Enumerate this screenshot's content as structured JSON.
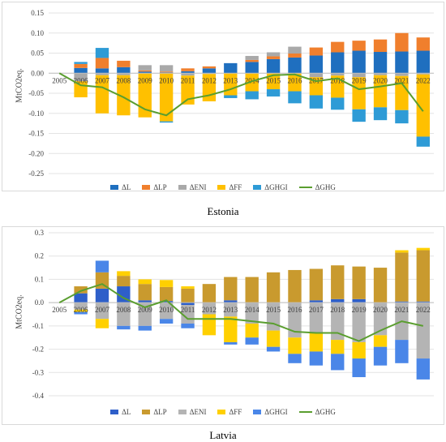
{
  "captions": {
    "estonia": "Estonia",
    "latvia": "Latvia"
  },
  "chart_data": [
    {
      "type": "bar",
      "panel": "estonia",
      "ylabel": "MtCO2eq.",
      "ylim": [
        -0.25,
        0.15
      ],
      "yticks": [
        0.15,
        0.1,
        0.05,
        0.0,
        -0.05,
        -0.1,
        -0.15,
        -0.2,
        -0.25
      ],
      "grid": true,
      "legend": "bottom",
      "categories": [
        "2005",
        "2006",
        "2007",
        "2008",
        "2009",
        "2010",
        "2011",
        "2012",
        "2013",
        "2014",
        "2015",
        "2016",
        "2017",
        "2018",
        "2019",
        "2020",
        "2021",
        "2022"
      ],
      "series": [
        {
          "name": "ΔL",
          "color": "#1f6fbf",
          "kind": "bar",
          "values": [
            0,
            0.013,
            0.012,
            0.015,
            0.004,
            0.002,
            0.005,
            0.012,
            0.025,
            0.028,
            0.035,
            0.039,
            0.044,
            0.052,
            0.056,
            0.053,
            0.054,
            0.056
          ]
        },
        {
          "name": "ΔLP",
          "color": "#f07f2d",
          "kind": "bar",
          "values": [
            0,
            0.01,
            0.026,
            0.016,
            0.003,
            0.002,
            0.007,
            0.005,
            0.0,
            0.005,
            0.007,
            0.01,
            0.02,
            0.026,
            0.025,
            0.031,
            0.046,
            0.033
          ]
        },
        {
          "name": "ΔENI",
          "color": "#a9a9a9",
          "kind": "bar",
          "values": [
            0,
            -0.02,
            -0.005,
            -0.005,
            0.013,
            0.016,
            -0.006,
            -0.002,
            0.0,
            0.01,
            0.01,
            0.017,
            -0.01,
            -0.006,
            -0.01,
            -0.005,
            -0.007,
            -0.003
          ]
        },
        {
          "name": "ΔFF",
          "color": "#ffc000",
          "kind": "bar",
          "values": [
            0,
            -0.04,
            -0.095,
            -0.1,
            -0.11,
            -0.12,
            -0.072,
            -0.068,
            -0.055,
            -0.045,
            -0.04,
            -0.045,
            -0.045,
            -0.055,
            -0.08,
            -0.08,
            -0.085,
            -0.155
          ]
        },
        {
          "name": "ΔGHGI",
          "color": "#2e9bd6",
          "kind": "bar",
          "values": [
            0,
            0.005,
            0.025,
            0.0,
            0.0,
            -0.003,
            0.0,
            0.0,
            -0.007,
            -0.02,
            -0.018,
            -0.03,
            -0.033,
            -0.03,
            -0.031,
            -0.032,
            -0.033,
            -0.025
          ]
        },
        {
          "name": "ΔGHG",
          "color": "#5a9e2f",
          "kind": "line",
          "values": [
            0.0,
            -0.03,
            -0.035,
            -0.06,
            -0.09,
            -0.105,
            -0.065,
            -0.055,
            -0.04,
            -0.02,
            -0.005,
            -0.003,
            -0.02,
            -0.013,
            -0.04,
            -0.033,
            -0.025,
            -0.095
          ]
        }
      ]
    },
    {
      "type": "bar",
      "panel": "latvia",
      "ylabel": "MtCO2eq.",
      "ylim": [
        -0.4,
        0.3
      ],
      "yticks": [
        0.3,
        0.2,
        0.1,
        0.0,
        -0.1,
        -0.2,
        -0.3,
        -0.4
      ],
      "grid": true,
      "legend": "bottom",
      "categories": [
        "2005",
        "2006",
        "2007",
        "2008",
        "2009",
        "2010",
        "2011",
        "2012",
        "2013",
        "2014",
        "2015",
        "2016",
        "2017",
        "2018",
        "2019",
        "2020",
        "2021",
        "2022"
      ],
      "series": [
        {
          "name": "ΔL",
          "color": "#2e5fc9",
          "kind": "bar",
          "values": [
            0,
            0.04,
            0.06,
            0.07,
            0.01,
            0.007,
            -0.01,
            0.0,
            0.01,
            0.0,
            0.0,
            0.0,
            0.01,
            0.015,
            0.015,
            0.0,
            0.005,
            0.005
          ]
        },
        {
          "name": "ΔLP",
          "color": "#c99a2e",
          "kind": "bar",
          "values": [
            0,
            0.03,
            0.07,
            0.045,
            0.07,
            0.06,
            0.06,
            0.08,
            0.1,
            0.11,
            0.13,
            0.14,
            0.135,
            0.145,
            0.14,
            0.15,
            0.21,
            0.22
          ]
        },
        {
          "name": "ΔENI",
          "color": "#b4b4b4",
          "kind": "bar",
          "values": [
            0,
            -0.03,
            -0.07,
            -0.1,
            -0.1,
            -0.07,
            -0.08,
            -0.05,
            -0.06,
            -0.09,
            -0.12,
            -0.15,
            -0.13,
            -0.16,
            -0.17,
            -0.14,
            -0.16,
            -0.24
          ]
        },
        {
          "name": "ΔFF",
          "color": "#ffd000",
          "kind": "bar",
          "values": [
            0,
            -0.01,
            -0.04,
            0.02,
            0.02,
            0.03,
            0.01,
            -0.09,
            -0.11,
            -0.06,
            -0.07,
            -0.07,
            -0.08,
            -0.06,
            -0.07,
            -0.05,
            0.01,
            0.01
          ]
        },
        {
          "name": "ΔGHGI",
          "color": "#4a86e8",
          "kind": "bar",
          "values": [
            0,
            -0.01,
            0.05,
            -0.015,
            -0.02,
            -0.02,
            -0.02,
            0.0,
            -0.01,
            -0.03,
            -0.02,
            -0.04,
            -0.06,
            -0.07,
            -0.08,
            -0.08,
            -0.1,
            -0.09
          ]
        },
        {
          "name": "ΔGHG",
          "color": "#5a9e2f",
          "kind": "line",
          "values": [
            0.0,
            0.05,
            0.08,
            0.02,
            -0.02,
            0.01,
            -0.07,
            -0.07,
            -0.07,
            -0.08,
            -0.09,
            -0.125,
            -0.13,
            -0.13,
            -0.165,
            -0.12,
            -0.08,
            -0.1
          ]
        }
      ]
    }
  ]
}
